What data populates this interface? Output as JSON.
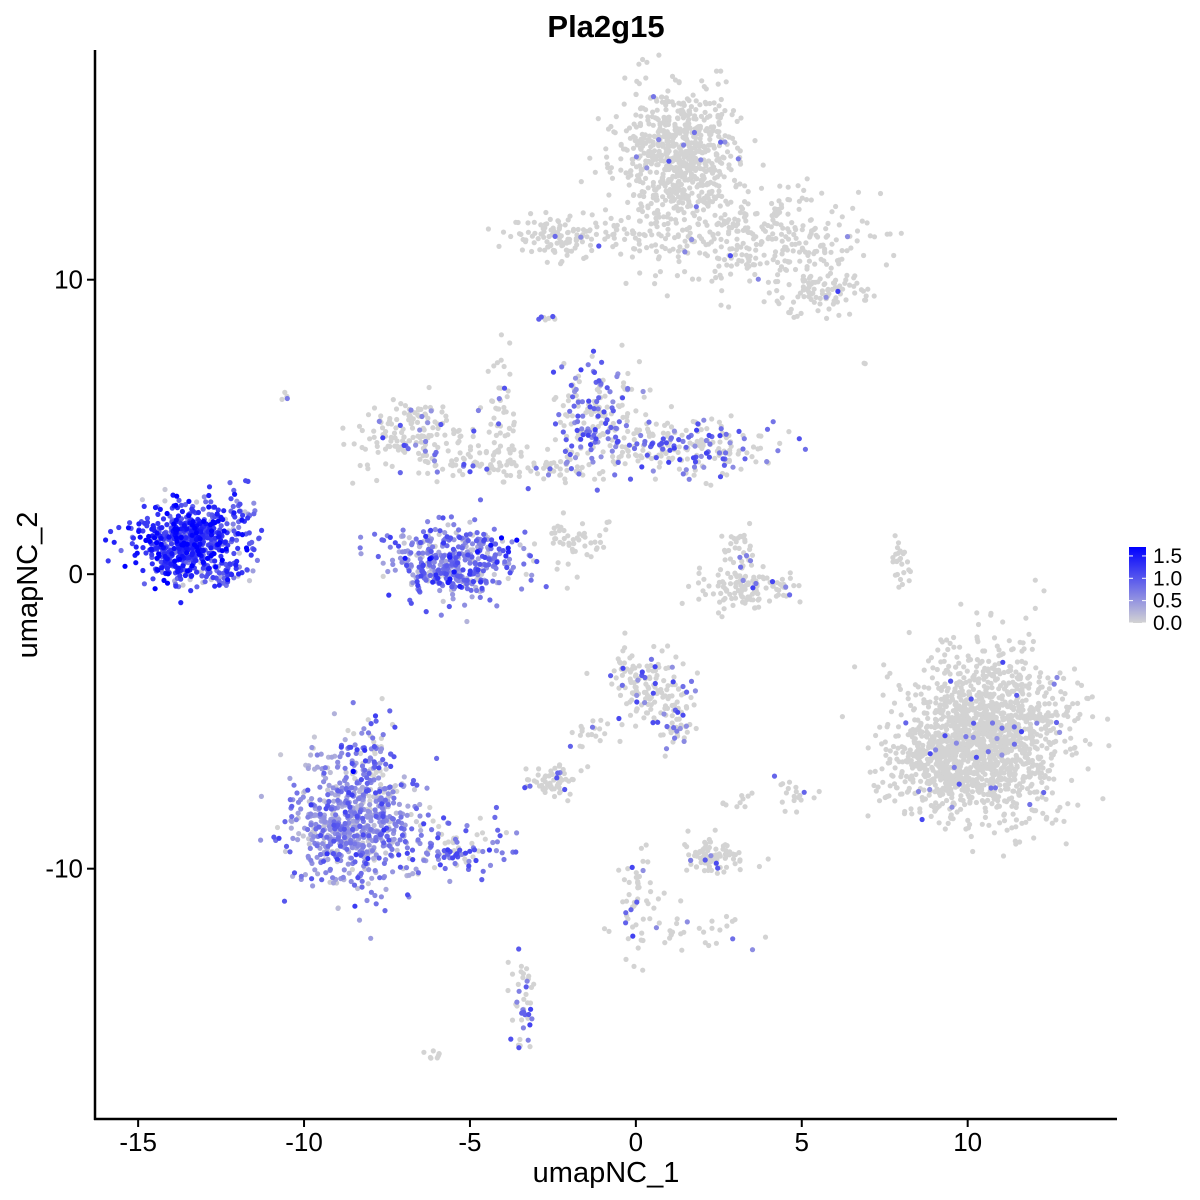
{
  "chart_data": {
    "type": "scatter",
    "title": "Pla2g15",
    "xlabel": "umapNC_1",
    "ylabel": "umapNC_2",
    "xlim": [
      -16.3,
      14.5
    ],
    "ylim": [
      -18.5,
      17.8
    ],
    "x_ticks": [
      -15,
      -10,
      -5,
      0,
      5,
      10
    ],
    "x_tick_labels": [
      "-15",
      "-10",
      "-5",
      "0",
      "5",
      "10"
    ],
    "y_ticks": [
      -10,
      0,
      10
    ],
    "y_tick_labels": [
      "-10",
      "0",
      "10"
    ],
    "grid": false,
    "legend": {
      "position": "right",
      "type": "colorbar",
      "min": 0.0,
      "max": 1.7,
      "ticks": [
        0.0,
        0.5,
        1.0,
        1.5
      ],
      "tick_labels": [
        "0.0",
        "0.5",
        "1.0",
        "1.5"
      ],
      "color_low": "#d3d3d3",
      "color_high": "#0000ff"
    },
    "point_color_scale": [
      "#d3d3d3",
      "#0000ff"
    ],
    "clusters": [
      {
        "cx": 1.3,
        "cy": 14.3,
        "sx": 0.9,
        "sy": 1.1,
        "n": 700,
        "mean": 0.01
      },
      {
        "cx": 4.0,
        "cy": 11.3,
        "sx": 1.7,
        "sy": 0.9,
        "n": 300,
        "mean": 0.01
      },
      {
        "cx": -0.5,
        "cy": 11.5,
        "sx": 2.2,
        "sy": 0.4,
        "n": 130,
        "mean": 0.01
      },
      {
        "cx": 5.7,
        "cy": 9.6,
        "sx": 0.6,
        "sy": 0.4,
        "n": 90,
        "mean": 0.02
      },
      {
        "cx": -2.6,
        "cy": 11.4,
        "sx": 0.5,
        "sy": 0.4,
        "n": 60,
        "mean": 0.02
      },
      {
        "cx": -13.5,
        "cy": 1.1,
        "sx": 0.75,
        "sy": 0.65,
        "n": 620,
        "mean": 1.25
      },
      {
        "cx": -11.8,
        "cy": 1.8,
        "sx": 0.25,
        "sy": 0.5,
        "n": 40,
        "mean": 1.0
      },
      {
        "cx": -12.4,
        "cy": 0.0,
        "sx": 0.4,
        "sy": 0.2,
        "n": 30,
        "mean": 1.0
      },
      {
        "cx": -5.5,
        "cy": 0.4,
        "sx": 1.0,
        "sy": 0.6,
        "n": 430,
        "mean": 0.75
      },
      {
        "cx": -6.5,
        "cy": 4.8,
        "sx": 1.0,
        "sy": 0.6,
        "n": 170,
        "mean": 0.06
      },
      {
        "cx": -4.6,
        "cy": 3.8,
        "sx": 0.9,
        "sy": 0.3,
        "n": 70,
        "mean": 0.08
      },
      {
        "cx": -4.1,
        "cy": 5.8,
        "sx": 0.25,
        "sy": 1.0,
        "n": 40,
        "mean": 0.05
      },
      {
        "cx": -1.2,
        "cy": 5.3,
        "sx": 0.7,
        "sy": 0.9,
        "n": 200,
        "mean": 0.3
      },
      {
        "cx": 1.5,
        "cy": 4.3,
        "sx": 1.2,
        "sy": 0.45,
        "n": 220,
        "mean": 0.25
      },
      {
        "cx": -2.1,
        "cy": 3.6,
        "sx": 0.6,
        "sy": 0.3,
        "n": 40,
        "mean": 0.1
      },
      {
        "cx": -2.0,
        "cy": 1.0,
        "sx": 0.7,
        "sy": 0.5,
        "n": 25,
        "mean": 0.05
      },
      {
        "cx": 3.5,
        "cy": -0.5,
        "sx": 0.8,
        "sy": 0.35,
        "n": 120,
        "mean": 0.03
      },
      {
        "cx": 3.1,
        "cy": 0.7,
        "sx": 0.3,
        "sy": 0.6,
        "n": 40,
        "mean": 0.08
      },
      {
        "cx": 8.0,
        "cy": 0.5,
        "sx": 0.15,
        "sy": 0.6,
        "n": 25,
        "mean": 0.0
      },
      {
        "cx": 10.5,
        "cy": -5.5,
        "sx": 1.2,
        "sy": 1.4,
        "n": 1400,
        "mean": 0.02
      },
      {
        "cx": 9.0,
        "cy": -6.6,
        "sx": 0.8,
        "sy": 0.7,
        "n": 250,
        "mean": 0.02
      },
      {
        "cx": 0.4,
        "cy": -3.8,
        "sx": 0.6,
        "sy": 0.6,
        "n": 150,
        "mean": 0.1
      },
      {
        "cx": 1.2,
        "cy": -5.0,
        "sx": 0.3,
        "sy": 0.5,
        "n": 40,
        "mean": 0.1
      },
      {
        "cx": -8.6,
        "cy": -8.5,
        "sx": 0.9,
        "sy": 1.1,
        "n": 700,
        "mean": 0.55
      },
      {
        "cx": -5.5,
        "cy": -9.3,
        "sx": 0.9,
        "sy": 0.5,
        "n": 110,
        "mean": 0.5
      },
      {
        "cx": -8.0,
        "cy": -6.3,
        "sx": 0.4,
        "sy": 0.8,
        "n": 80,
        "mean": 0.45
      },
      {
        "cx": -2.5,
        "cy": -7.0,
        "sx": 0.4,
        "sy": 0.3,
        "n": 60,
        "mean": 0.1
      },
      {
        "cx": -1.5,
        "cy": -5.6,
        "sx": 0.3,
        "sy": 0.4,
        "n": 20,
        "mean": 0.05
      },
      {
        "cx": 2.3,
        "cy": -9.6,
        "sx": 0.5,
        "sy": 0.3,
        "n": 80,
        "mean": 0.05
      },
      {
        "cx": 0.0,
        "cy": -11.0,
        "sx": 0.3,
        "sy": 1.0,
        "n": 50,
        "mean": 0.15
      },
      {
        "cx": 1.7,
        "cy": -12.1,
        "sx": 0.9,
        "sy": 0.4,
        "n": 35,
        "mean": 0.1
      },
      {
        "cx": -3.4,
        "cy": -14.6,
        "sx": 0.2,
        "sy": 0.9,
        "n": 45,
        "mean": 0.2
      },
      {
        "cx": 4.9,
        "cy": -7.5,
        "sx": 0.3,
        "sy": 0.3,
        "n": 20,
        "mean": 0.1
      },
      {
        "cx": 3.2,
        "cy": -7.8,
        "sx": 0.3,
        "sy": 0.2,
        "n": 10,
        "mean": 0.1
      },
      {
        "cx": -2.7,
        "cy": 8.7,
        "sx": 0.15,
        "sy": 0.15,
        "n": 8,
        "mean": 0.2
      },
      {
        "cx": -10.5,
        "cy": 6.0,
        "sx": 0.1,
        "sy": 0.1,
        "n": 4,
        "mean": 0.2
      },
      {
        "cx": -6.0,
        "cy": -16.3,
        "sx": 0.2,
        "sy": 0.1,
        "n": 8,
        "mean": 0.0
      },
      {
        "cx": -1.7,
        "cy": 1.1,
        "sx": 0.5,
        "sy": 0.4,
        "n": 25,
        "mean": 0.0
      },
      {
        "cx": 6.9,
        "cy": 7.1,
        "sx": 0.1,
        "sy": 0.1,
        "n": 2,
        "mean": 0.0
      }
    ]
  }
}
